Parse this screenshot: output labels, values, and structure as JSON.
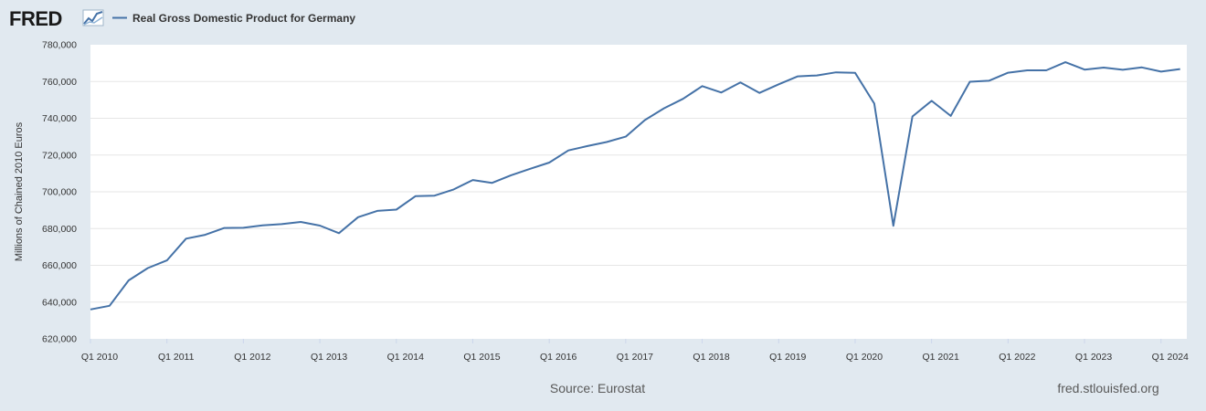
{
  "header": {
    "logo_text": "FRED",
    "legend_label": "Real Gross Domestic Product for Germany"
  },
  "footer": {
    "source": "Source: Eurostat",
    "site": "fred.stlouisfed.org"
  },
  "colors": {
    "background": "#e1e9f0",
    "plot_background": "#ffffff",
    "series": "#4572a7",
    "grid": "#e6e6e6"
  },
  "chart_data": {
    "type": "line",
    "ylabel": "Millions of Chained 2010 Euros",
    "ylim": [
      620000,
      780000
    ],
    "y_ticks": [
      620000,
      640000,
      660000,
      680000,
      700000,
      720000,
      740000,
      760000,
      780000
    ],
    "y_tick_labels": [
      "620,000",
      "640,000",
      "660,000",
      "680,000",
      "700,000",
      "720,000",
      "740,000",
      "760,000",
      "780,000"
    ],
    "x_tick_labels": [
      "Q1 2010",
      "Q1 2011",
      "Q1 2012",
      "Q1 2013",
      "Q1 2014",
      "Q1 2015",
      "Q1 2016",
      "Q1 2017",
      "Q1 2018",
      "Q1 2019",
      "Q1 2020",
      "Q1 2021",
      "Q1 2022",
      "Q1 2023",
      "Q1 2024"
    ],
    "grid": true,
    "legend_position": "top-left",
    "series": [
      {
        "name": "Real Gross Domestic Product for Germany",
        "x": [
          "2010-Q1",
          "2010-Q2",
          "2010-Q3",
          "2010-Q4",
          "2011-Q1",
          "2011-Q2",
          "2011-Q3",
          "2011-Q4",
          "2012-Q1",
          "2012-Q2",
          "2012-Q3",
          "2012-Q4",
          "2013-Q1",
          "2013-Q2",
          "2013-Q3",
          "2013-Q4",
          "2014-Q1",
          "2014-Q2",
          "2014-Q3",
          "2014-Q4",
          "2015-Q1",
          "2015-Q2",
          "2015-Q3",
          "2015-Q4",
          "2016-Q1",
          "2016-Q2",
          "2016-Q3",
          "2016-Q4",
          "2017-Q1",
          "2017-Q2",
          "2017-Q3",
          "2017-Q4",
          "2018-Q1",
          "2018-Q2",
          "2018-Q3",
          "2018-Q4",
          "2019-Q1",
          "2019-Q2",
          "2019-Q3",
          "2019-Q4",
          "2020-Q1",
          "2020-Q2",
          "2020-Q3",
          "2020-Q4",
          "2021-Q1",
          "2021-Q2",
          "2021-Q3",
          "2021-Q4",
          "2022-Q1",
          "2022-Q2",
          "2022-Q3",
          "2022-Q4",
          "2023-Q1",
          "2023-Q2",
          "2023-Q3",
          "2023-Q4",
          "2024-Q1",
          "2024-Q2"
        ],
        "values": [
          636000,
          638000,
          651800,
          658500,
          662700,
          674500,
          676600,
          680300,
          680400,
          681700,
          682400,
          683600,
          681600,
          677500,
          686200,
          689600,
          690300,
          697600,
          697900,
          701300,
          706400,
          704800,
          709000,
          712500,
          715900,
          722500,
          724900,
          727100,
          730000,
          739000,
          745400,
          750600,
          757500,
          754000,
          759500,
          753800,
          758500,
          762800,
          763300,
          765000,
          764700,
          748000,
          681500,
          741000,
          749500,
          741300,
          759900,
          760400,
          764800,
          766100,
          766100,
          770500,
          766500,
          767600,
          766400,
          767700,
          765400,
          766800
        ]
      }
    ]
  }
}
